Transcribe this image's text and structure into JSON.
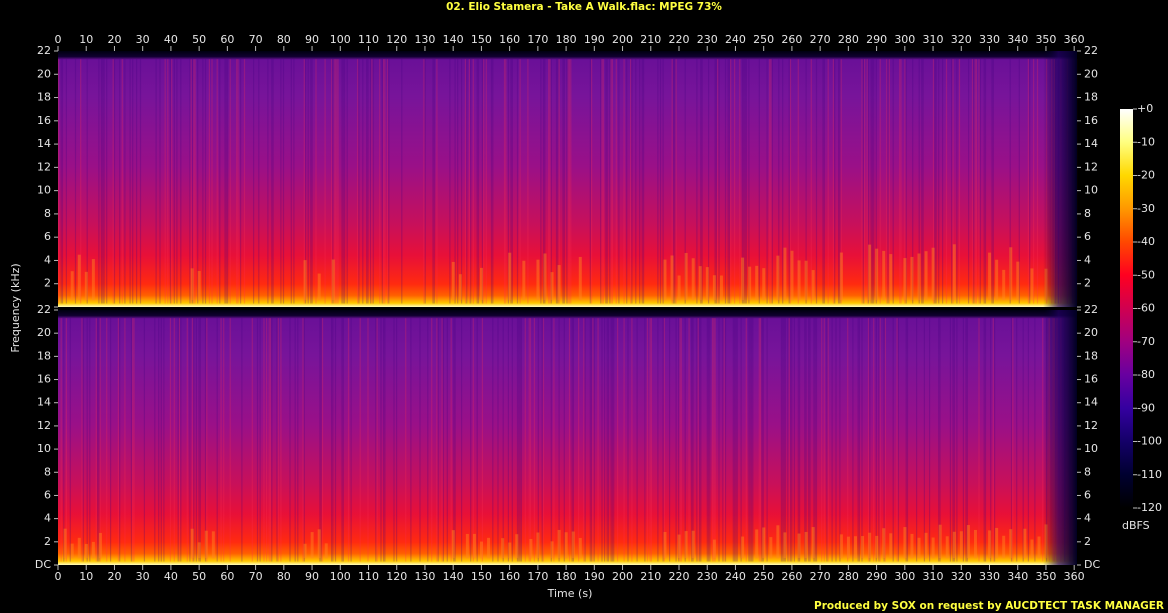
{
  "chart_data": {
    "type": "spectrogram",
    "title": "02. Elio Stamera - Take A Walk.flac: MPEG 73%",
    "x_label": "Time (s)",
    "y_label": "Frequency (kHz)",
    "xlim": [
      0,
      361
    ],
    "xticks": [
      0,
      10,
      20,
      30,
      40,
      50,
      60,
      70,
      80,
      90,
      100,
      110,
      120,
      130,
      140,
      150,
      160,
      170,
      180,
      190,
      200,
      210,
      220,
      230,
      240,
      250,
      260,
      270,
      280,
      290,
      300,
      310,
      320,
      330,
      340,
      350,
      360
    ],
    "ylim": [
      0,
      22
    ],
    "yticks": [
      {
        "value": 0,
        "label": "DC"
      },
      2,
      4,
      6,
      8,
      10,
      12,
      14,
      16,
      18,
      20,
      22
    ],
    "colorbar": {
      "label": "dBFS",
      "lim": [
        -120,
        0
      ],
      "ticks": [
        {
          "value": 0,
          "label": "+0"
        },
        -10,
        -20,
        -30,
        -40,
        -50,
        -60,
        -70,
        -80,
        -90,
        -100,
        -110,
        -120
      ]
    },
    "footer": "Produced by SOX on request by AUCDTECT TASK MANAGER"
  }
}
